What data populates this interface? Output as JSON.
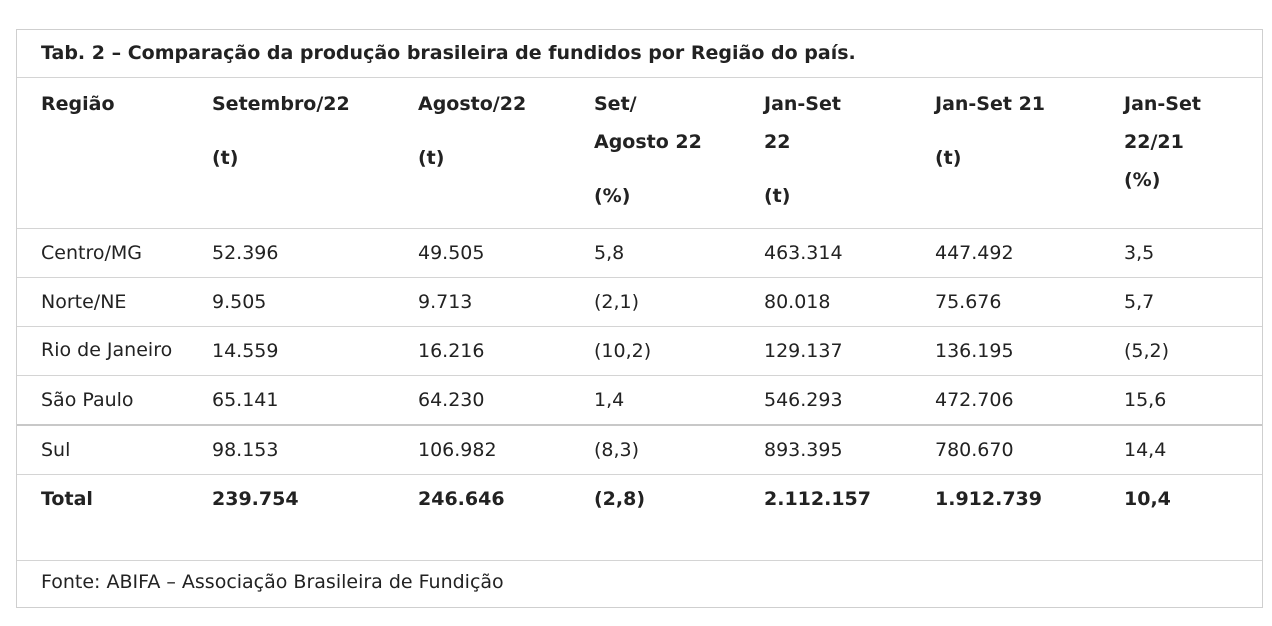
{
  "caption": "Tab. 2 – Comparação da produção brasileira de fundidos por Região do país.",
  "headers": [
    {
      "lines": [
        "Região"
      ],
      "unit": ""
    },
    {
      "lines": [
        "Setembro/22"
      ],
      "unit": "(t)"
    },
    {
      "lines": [
        "Agosto/22"
      ],
      "unit": "(t)"
    },
    {
      "lines": [
        "Set/",
        "Agosto 22"
      ],
      "unit": "(%)"
    },
    {
      "lines": [
        "Jan-Set",
        "22"
      ],
      "unit": "(t)"
    },
    {
      "lines": [
        "Jan-Set 21"
      ],
      "unit": "(t)"
    },
    {
      "lines": [
        "Jan-Set",
        "22/21",
        "(%)"
      ],
      "unit": ""
    }
  ],
  "rows": [
    [
      "Centro/MG",
      "52.396",
      "49.505",
      "5,8",
      "463.314",
      "447.492",
      "3,5"
    ],
    [
      "Norte/NE",
      "9.505",
      "9.713",
      "(2,1)",
      "80.018",
      "75.676",
      "5,7"
    ],
    [
      "Rio de Janeiro",
      "14.559",
      "16.216",
      "(10,2)",
      "129.137",
      "136.195",
      "(5,2)"
    ],
    [
      "São Paulo",
      "65.141",
      "64.230",
      "1,4",
      "546.293",
      "472.706",
      "15,6"
    ],
    [
      "Sul",
      "98.153",
      "106.982",
      "(8,3)",
      "893.395",
      "780.670",
      "14,4"
    ]
  ],
  "total": [
    "Total",
    "239.754",
    "246.646",
    "(2,8)",
    "2.112.157",
    "1.912.739",
    "10,4"
  ],
  "source": "Fonte: ABIFA – Associação Brasileira de Fundição"
}
